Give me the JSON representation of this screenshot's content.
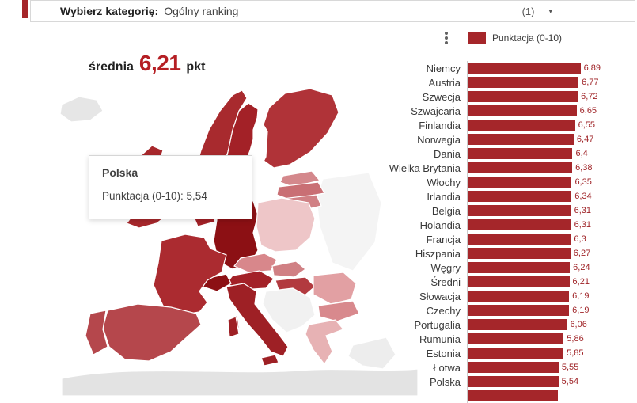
{
  "colors": {
    "accent": "#a5262a",
    "bar": "#a5262a",
    "value_text": "#9e2125",
    "average_value": "#b51f24",
    "axis": "#cccccc"
  },
  "topbar": {
    "label": "Wybierz kategorię:",
    "value": "Ogólny ranking",
    "count": "(1)"
  },
  "legend": {
    "label": "Punktacja (0-10)"
  },
  "average": {
    "prefix": "średnia",
    "value": "6,21",
    "suffix": "pkt"
  },
  "tooltip": {
    "title": "Polska",
    "line": "Punktacja (0-10): 5,54"
  },
  "chart_data": {
    "type": "bar",
    "orientation": "horizontal",
    "legend": "Punktacja (0-10)",
    "xlim": [
      0,
      10
    ],
    "rows": [
      {
        "label": "Niemcy",
        "value": "6,89"
      },
      {
        "label": "Austria",
        "value": "6,77"
      },
      {
        "label": "Szwecja",
        "value": "6,72"
      },
      {
        "label": "Szwajcaria",
        "value": "6,65"
      },
      {
        "label": "Finlandia",
        "value": "6,55"
      },
      {
        "label": "Norwegia",
        "value": "6,47"
      },
      {
        "label": "Dania",
        "value": "6,4"
      },
      {
        "label": "Wielka Brytania",
        "value": "6,38"
      },
      {
        "label": "Włochy",
        "value": "6,35"
      },
      {
        "label": "Irlandia",
        "value": "6,34"
      },
      {
        "label": "Belgia",
        "value": "6,31"
      },
      {
        "label": "Holandia",
        "value": "6,31"
      },
      {
        "label": "Francja",
        "value": "6,3"
      },
      {
        "label": "Hiszpania",
        "value": "6,27"
      },
      {
        "label": "Węgry",
        "value": "6,24"
      },
      {
        "label": "Średni",
        "value": "6,21"
      },
      {
        "label": "Słowacja",
        "value": "6,19"
      },
      {
        "label": "Czechy",
        "value": "6,19"
      },
      {
        "label": "Portugalia",
        "value": "6,06"
      },
      {
        "label": "Rumunia",
        "value": "5,86"
      },
      {
        "label": "Estonia",
        "value": "5,85"
      },
      {
        "label": "Łotwa",
        "value": "5,55"
      },
      {
        "label": "Polska",
        "value": "5,54"
      },
      {
        "label": "",
        "value": "",
        "bar_pct": 55
      }
    ]
  },
  "map": {
    "colors": {
      "iceland": "#e6e6e6",
      "norway": "#a82a2e",
      "sweden": "#a32127",
      "finland": "#b03338",
      "estonia": "#d4888c",
      "latvia": "#c96f74",
      "lithuania": "#d08084",
      "denmark": "#a32127",
      "uk": "#a7282c",
      "ireland": "#a7282c",
      "netherlands": "#a32127",
      "belgium": "#a32127",
      "germany": "#8c1014",
      "poland": "#eec6c8",
      "czechia": "#d8878b",
      "slovakia": "#d08084",
      "austria": "#a32127",
      "switzerland": "#8c1014",
      "france": "#ab2b30",
      "hungary": "#b23a3f",
      "italy": "#9e2025",
      "spain": "#b5474c",
      "portugal": "#b5474c",
      "romania": "#e2a0a3",
      "bulgaria": "#d8898d",
      "greece": "#e7b2b4",
      "balkans": "#f1f1f1",
      "east": "#f4f4f4",
      "turkey": "#ededed",
      "africa": "#e3e3e3"
    }
  }
}
